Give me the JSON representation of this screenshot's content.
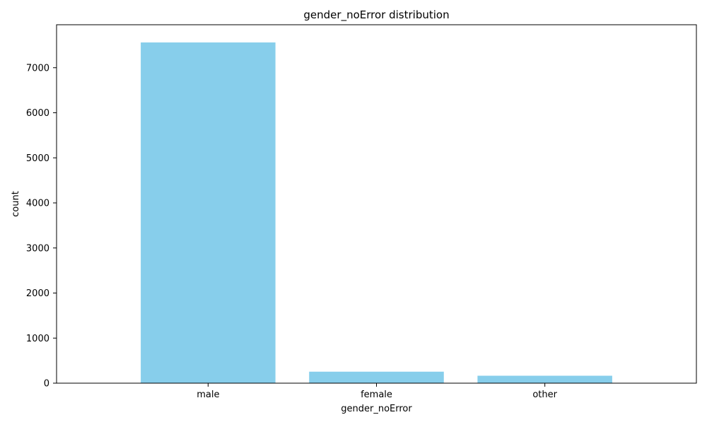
{
  "chart_data": {
    "type": "bar",
    "title": "gender_noError distribution",
    "xlabel": "gender_noError",
    "ylabel": "count",
    "categories": [
      "male",
      "female",
      "other"
    ],
    "values": [
      7560,
      255,
      165
    ],
    "ylim": [
      0,
      7953
    ],
    "yticks": [
      0,
      1000,
      2000,
      3000,
      4000,
      5000,
      6000,
      7000
    ],
    "ytick_labels": [
      "0",
      "1000",
      "2000",
      "3000",
      "4000",
      "5000",
      "6000",
      "7000"
    ],
    "bar_color": "#87CEEB",
    "grid": false,
    "legend": "none"
  }
}
